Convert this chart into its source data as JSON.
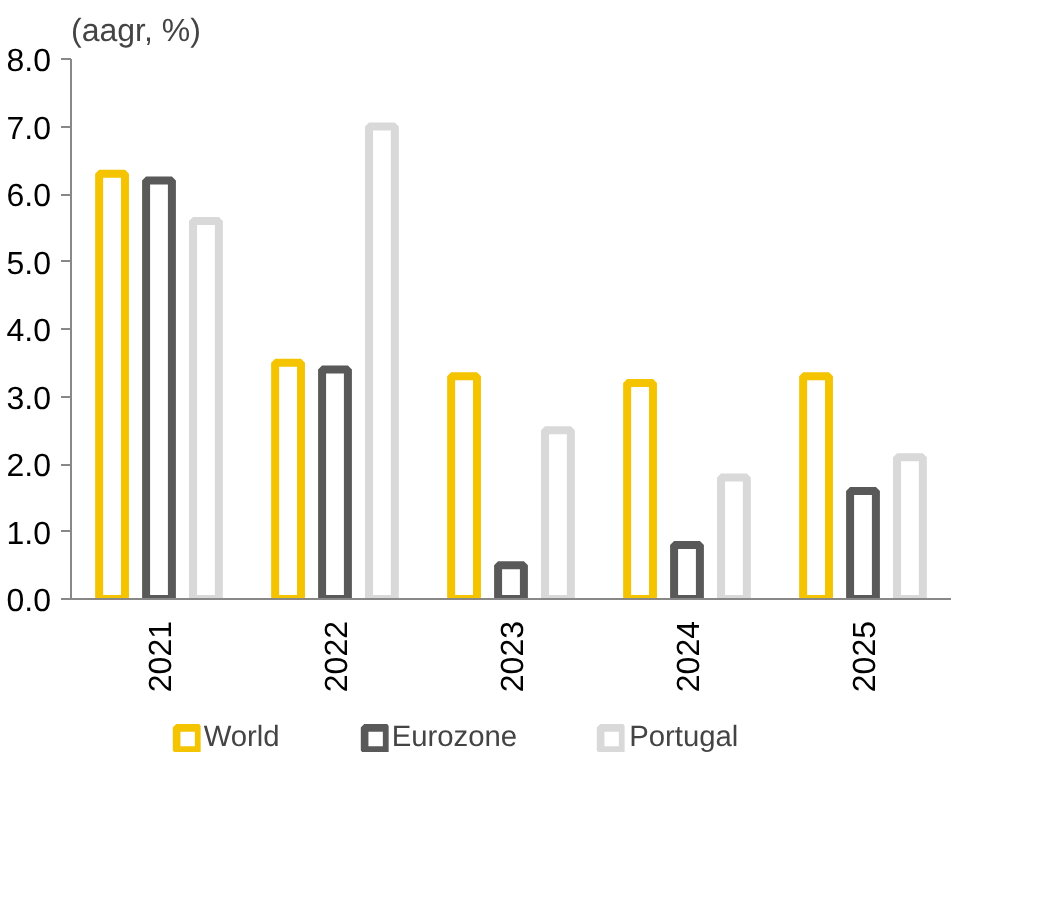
{
  "chart_data": {
    "type": "bar",
    "ylabel": "(aagr, %)",
    "categories": [
      "2021",
      "2022",
      "2023",
      "2024",
      "2025"
    ],
    "series": [
      {
        "name": "World",
        "color": "#f5c400",
        "values": [
          6.3,
          3.5,
          3.3,
          3.2,
          3.3
        ]
      },
      {
        "name": "Eurozone",
        "color": "#595959",
        "values": [
          6.2,
          3.4,
          0.5,
          0.8,
          1.6
        ]
      },
      {
        "name": "Portugal",
        "color": "#d9d9d9",
        "values": [
          5.6,
          7.0,
          2.5,
          1.8,
          2.1
        ]
      }
    ],
    "ylim": [
      0,
      8
    ],
    "yticks": [
      {
        "value": 0,
        "label": "0.0"
      },
      {
        "value": 1,
        "label": "1.0"
      },
      {
        "value": 2,
        "label": "2.0"
      },
      {
        "value": 3,
        "label": "3.0"
      },
      {
        "value": 4,
        "label": "4.0"
      },
      {
        "value": 5,
        "label": "5.0"
      },
      {
        "value": 6,
        "label": "6.0"
      },
      {
        "value": 7,
        "label": "7.0"
      },
      {
        "value": 8,
        "label": "8.0"
      }
    ],
    "grid": false,
    "legend": "bottom"
  }
}
